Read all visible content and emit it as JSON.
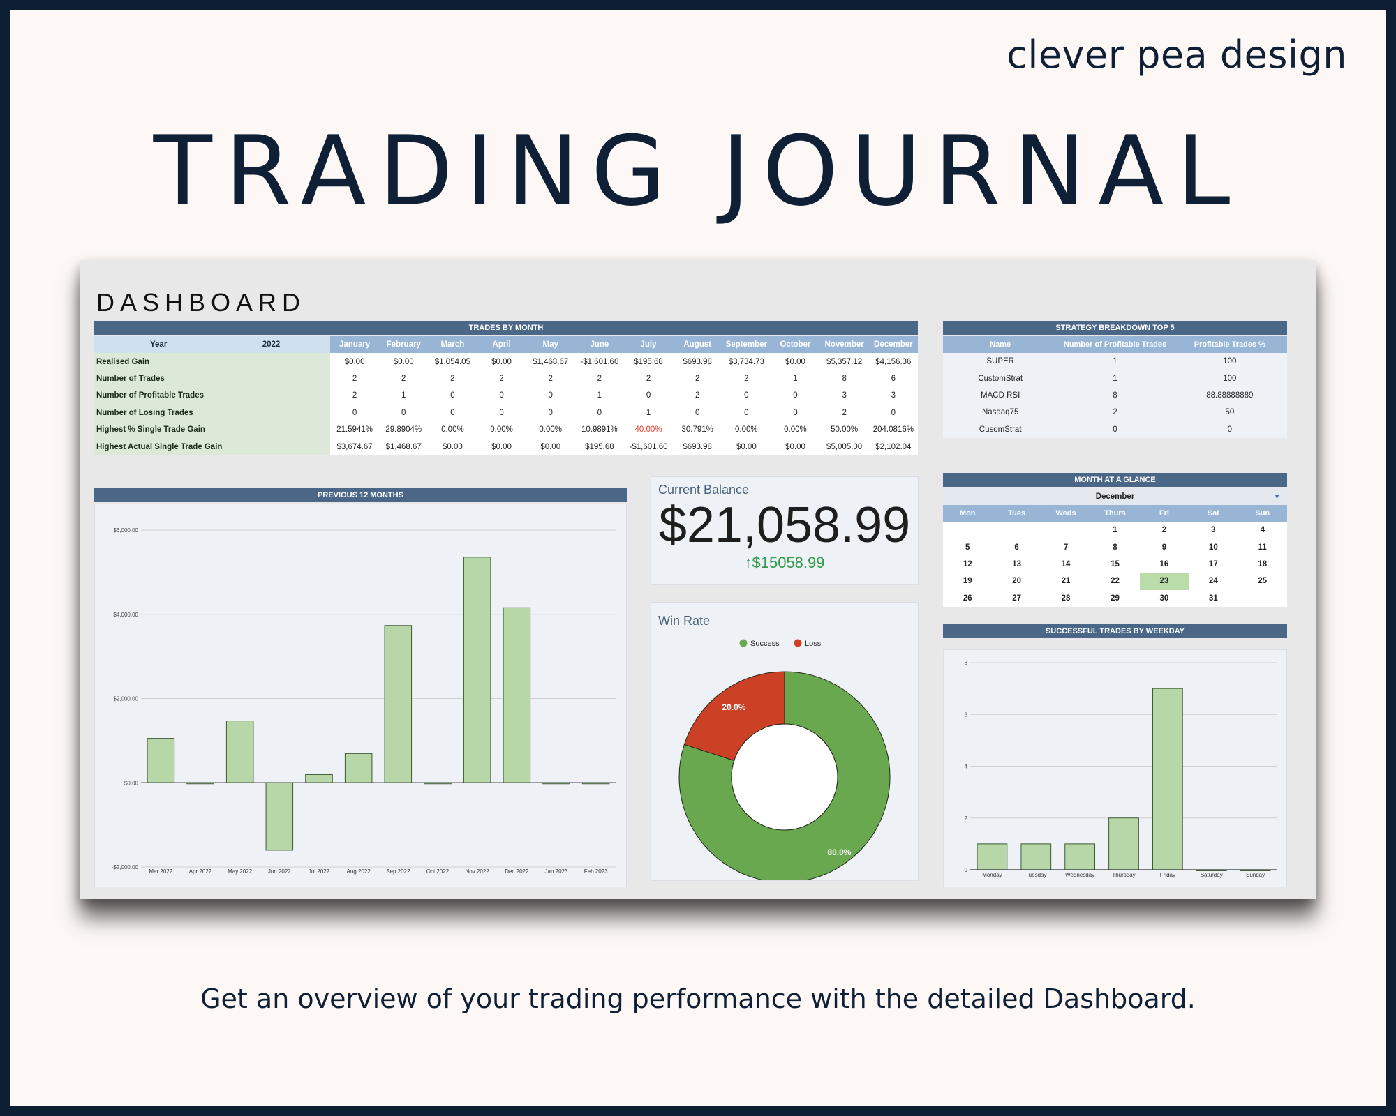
{
  "brand": "clever pea design",
  "title": "TRADING JOURNAL",
  "caption": "Get an overview of your trading performance with the detailed Dashboard.",
  "dashboard": {
    "title": "DASHBOARD",
    "trades_by_month": {
      "header": "TRADES BY MONTH",
      "year_label": "Year",
      "year_value": "2022",
      "months": [
        "January",
        "February",
        "March",
        "April",
        "May",
        "June",
        "July",
        "August",
        "September",
        "October",
        "November",
        "December"
      ],
      "rows": [
        {
          "label": "Realised Gain",
          "values": [
            "$0.00",
            "$0.00",
            "$1,054.05",
            "$0.00",
            "$1,468.67",
            "-$1,601.60",
            "$195.68",
            "$693.98",
            "$3,734.73",
            "$0.00",
            "$5,357.12",
            "$4,156.36"
          ]
        },
        {
          "label": "Number of Trades",
          "values": [
            "2",
            "2",
            "2",
            "2",
            "2",
            "2",
            "2",
            "2",
            "2",
            "1",
            "8",
            "6"
          ]
        },
        {
          "label": "Number of Profitable Trades",
          "values": [
            "2",
            "1",
            "0",
            "0",
            "0",
            "1",
            "0",
            "2",
            "0",
            "0",
            "3",
            "3"
          ]
        },
        {
          "label": "Number of Losing Trades",
          "values": [
            "0",
            "0",
            "0",
            "0",
            "0",
            "0",
            "1",
            "0",
            "0",
            "0",
            "2",
            "0"
          ]
        },
        {
          "label": "Highest % Single Trade Gain",
          "values": [
            "21.5941%",
            "29.8904%",
            "0.00%",
            "0.00%",
            "0.00%",
            "10.9891%",
            "40.00%",
            "30.791%",
            "0.00%",
            "0.00%",
            "50.00%",
            "204.0816%"
          ]
        },
        {
          "label": "Highest Actual Single Trade Gain",
          "values": [
            "$3,674.67",
            "$1,468.67",
            "$0.00",
            "$0.00",
            "$0.00",
            "$195.68",
            "-$1,601.60",
            "$693.98",
            "$0.00",
            "$0.00",
            "$5,005.00",
            "$2,102.04"
          ]
        }
      ],
      "negative_cell": {
        "row": 4,
        "col": 6
      }
    },
    "strategy": {
      "header": "STRATEGY BREAKDOWN TOP 5",
      "columns": [
        "Name",
        "Number of Profitable Trades",
        "Profitable Trades %"
      ],
      "rows": [
        [
          "SUPER",
          "1",
          "100"
        ],
        [
          "CustomStrat",
          "1",
          "100"
        ],
        [
          "MACD RSI",
          "8",
          "88.88888889"
        ],
        [
          "Nasdaq75",
          "2",
          "50"
        ],
        [
          "CusomStrat",
          "0",
          "0"
        ]
      ]
    },
    "calendar": {
      "header": "MONTH AT A GLANCE",
      "month": "December",
      "weekdays": [
        "Mon",
        "Tues",
        "Weds",
        "Thurs",
        "Fri",
        "Sat",
        "Sun"
      ],
      "weeks": [
        [
          "",
          "",
          "",
          "1",
          "2",
          "3",
          "4"
        ],
        [
          "5",
          "6",
          "7",
          "8",
          "9",
          "10",
          "11"
        ],
        [
          "12",
          "13",
          "14",
          "15",
          "16",
          "17",
          "18"
        ],
        [
          "19",
          "20",
          "21",
          "22",
          "23",
          "24",
          "25"
        ],
        [
          "26",
          "27",
          "28",
          "29",
          "30",
          "31",
          ""
        ]
      ],
      "today": "23"
    },
    "balance": {
      "label": "Current Balance",
      "value": "$21,058.99",
      "delta": "$15058.99"
    },
    "colors": {
      "header": "#4b6788",
      "bar": "#b7d7a8",
      "success": "#6aa84f",
      "loss": "#cc4125",
      "positive": "#2e9b4a"
    },
    "icons": {
      "delta": "arrow-up-icon",
      "month_select": "chevron-down-icon"
    }
  },
  "chart_data": [
    {
      "type": "bar",
      "title": "PREVIOUS 12 MONTHS",
      "categories": [
        "Mar 2022",
        "Apr 2022",
        "May 2022",
        "Jun 2022",
        "Jul 2022",
        "Aug 2022",
        "Sep 2022",
        "Oct 2022",
        "Nov 2022",
        "Dec 2022",
        "Jan 2023",
        "Feb 2023"
      ],
      "values": [
        1054.05,
        0,
        1468.67,
        -1601.6,
        195.68,
        693.98,
        3734.73,
        0,
        5357.12,
        4156.36,
        0,
        0
      ],
      "ylim": [
        -2000,
        6000
      ],
      "yticks": [
        6000,
        4000,
        2000,
        0,
        -2000
      ],
      "ytick_labels": [
        "$6,000.00",
        "$4,000.00",
        "$2,000.00",
        "$0.00",
        "-$2,000.00"
      ],
      "grid": true
    },
    {
      "type": "pie",
      "title": "Win Rate",
      "labels": [
        "Success",
        "Loss"
      ],
      "values": [
        80.0,
        20.0
      ],
      "value_labels": [
        "80.0%",
        "20.0%"
      ],
      "legend": "top"
    },
    {
      "type": "bar",
      "title": "SUCCESSFUL TRADES BY WEEKDAY",
      "categories": [
        "Monday",
        "Tuesday",
        "Wednesday",
        "Thursday",
        "Friday",
        "Saturday",
        "Sunday"
      ],
      "values": [
        1,
        1,
        1,
        2,
        7,
        0,
        0
      ],
      "ylim": [
        0,
        8
      ],
      "yticks": [
        8,
        6,
        4,
        2,
        0
      ],
      "ytick_labels": [
        "8",
        "6",
        "4",
        "2",
        "0"
      ],
      "grid": true
    }
  ]
}
